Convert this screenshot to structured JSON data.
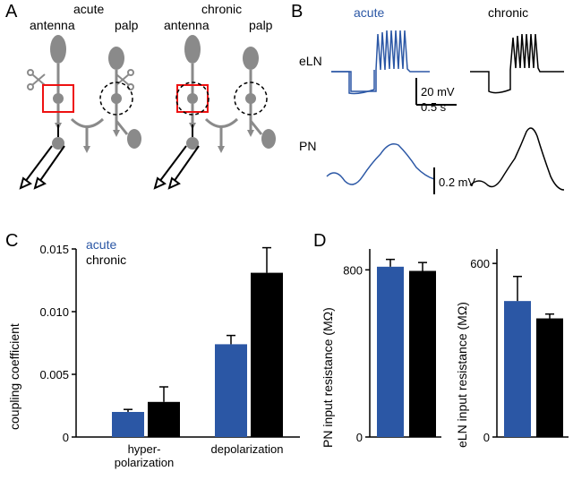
{
  "panelA": {
    "label": "A",
    "acute": {
      "title": "acute",
      "left": "antenna",
      "right": "palp"
    },
    "chronic": {
      "title": "chronic",
      "left": "antenna",
      "right": "palp"
    }
  },
  "panelB": {
    "label": "B",
    "acute_title": "acute",
    "chronic_title": "chronic",
    "eLN": "eLN",
    "PN": "PN",
    "scale_v1": "20 mV",
    "scale_t": "0.5 s",
    "scale_v2": "0.2 mV",
    "colors": {
      "acute": "#2b57a5",
      "chronic": "#000000"
    }
  },
  "panelC": {
    "label": "C",
    "ylabel": "coupling coefficient",
    "legend": {
      "acute": "acute",
      "chronic": "chronic"
    },
    "yticks": [
      "0",
      "0.005",
      "0.010",
      "0.015"
    ],
    "ylim": [
      0,
      0.015
    ],
    "categories": [
      "hyper-\npolarization",
      "depolarization"
    ],
    "bars": [
      {
        "group": 0,
        "cond": "acute",
        "value": 0.002,
        "err": 0.0002,
        "color": "#2b57a5"
      },
      {
        "group": 0,
        "cond": "chronic",
        "value": 0.0028,
        "err": 0.0012,
        "color": "#000000"
      },
      {
        "group": 1,
        "cond": "acute",
        "value": 0.0074,
        "err": 0.0007,
        "color": "#2b57a5"
      },
      {
        "group": 1,
        "cond": "chronic",
        "value": 0.0131,
        "err": 0.002,
        "color": "#000000"
      }
    ]
  },
  "panelD": {
    "label": "D",
    "left": {
      "ylabel": "PN input resistance (MΩ)",
      "yticks": [
        "0",
        "800"
      ],
      "ylim": [
        0,
        900
      ],
      "bars": [
        {
          "cond": "acute",
          "value": 815,
          "err": 35,
          "color": "#2b57a5"
        },
        {
          "cond": "chronic",
          "value": 795,
          "err": 40,
          "color": "#000000"
        }
      ]
    },
    "right": {
      "ylabel": "eLN input resistance (MΩ)",
      "yticks": [
        "0",
        "600"
      ],
      "ylim": [
        0,
        650
      ],
      "bars": [
        {
          "cond": "acute",
          "value": 470,
          "err": 85,
          "color": "#2b57a5"
        },
        {
          "cond": "chronic",
          "value": 410,
          "err": 15,
          "color": "#000000"
        }
      ]
    }
  }
}
